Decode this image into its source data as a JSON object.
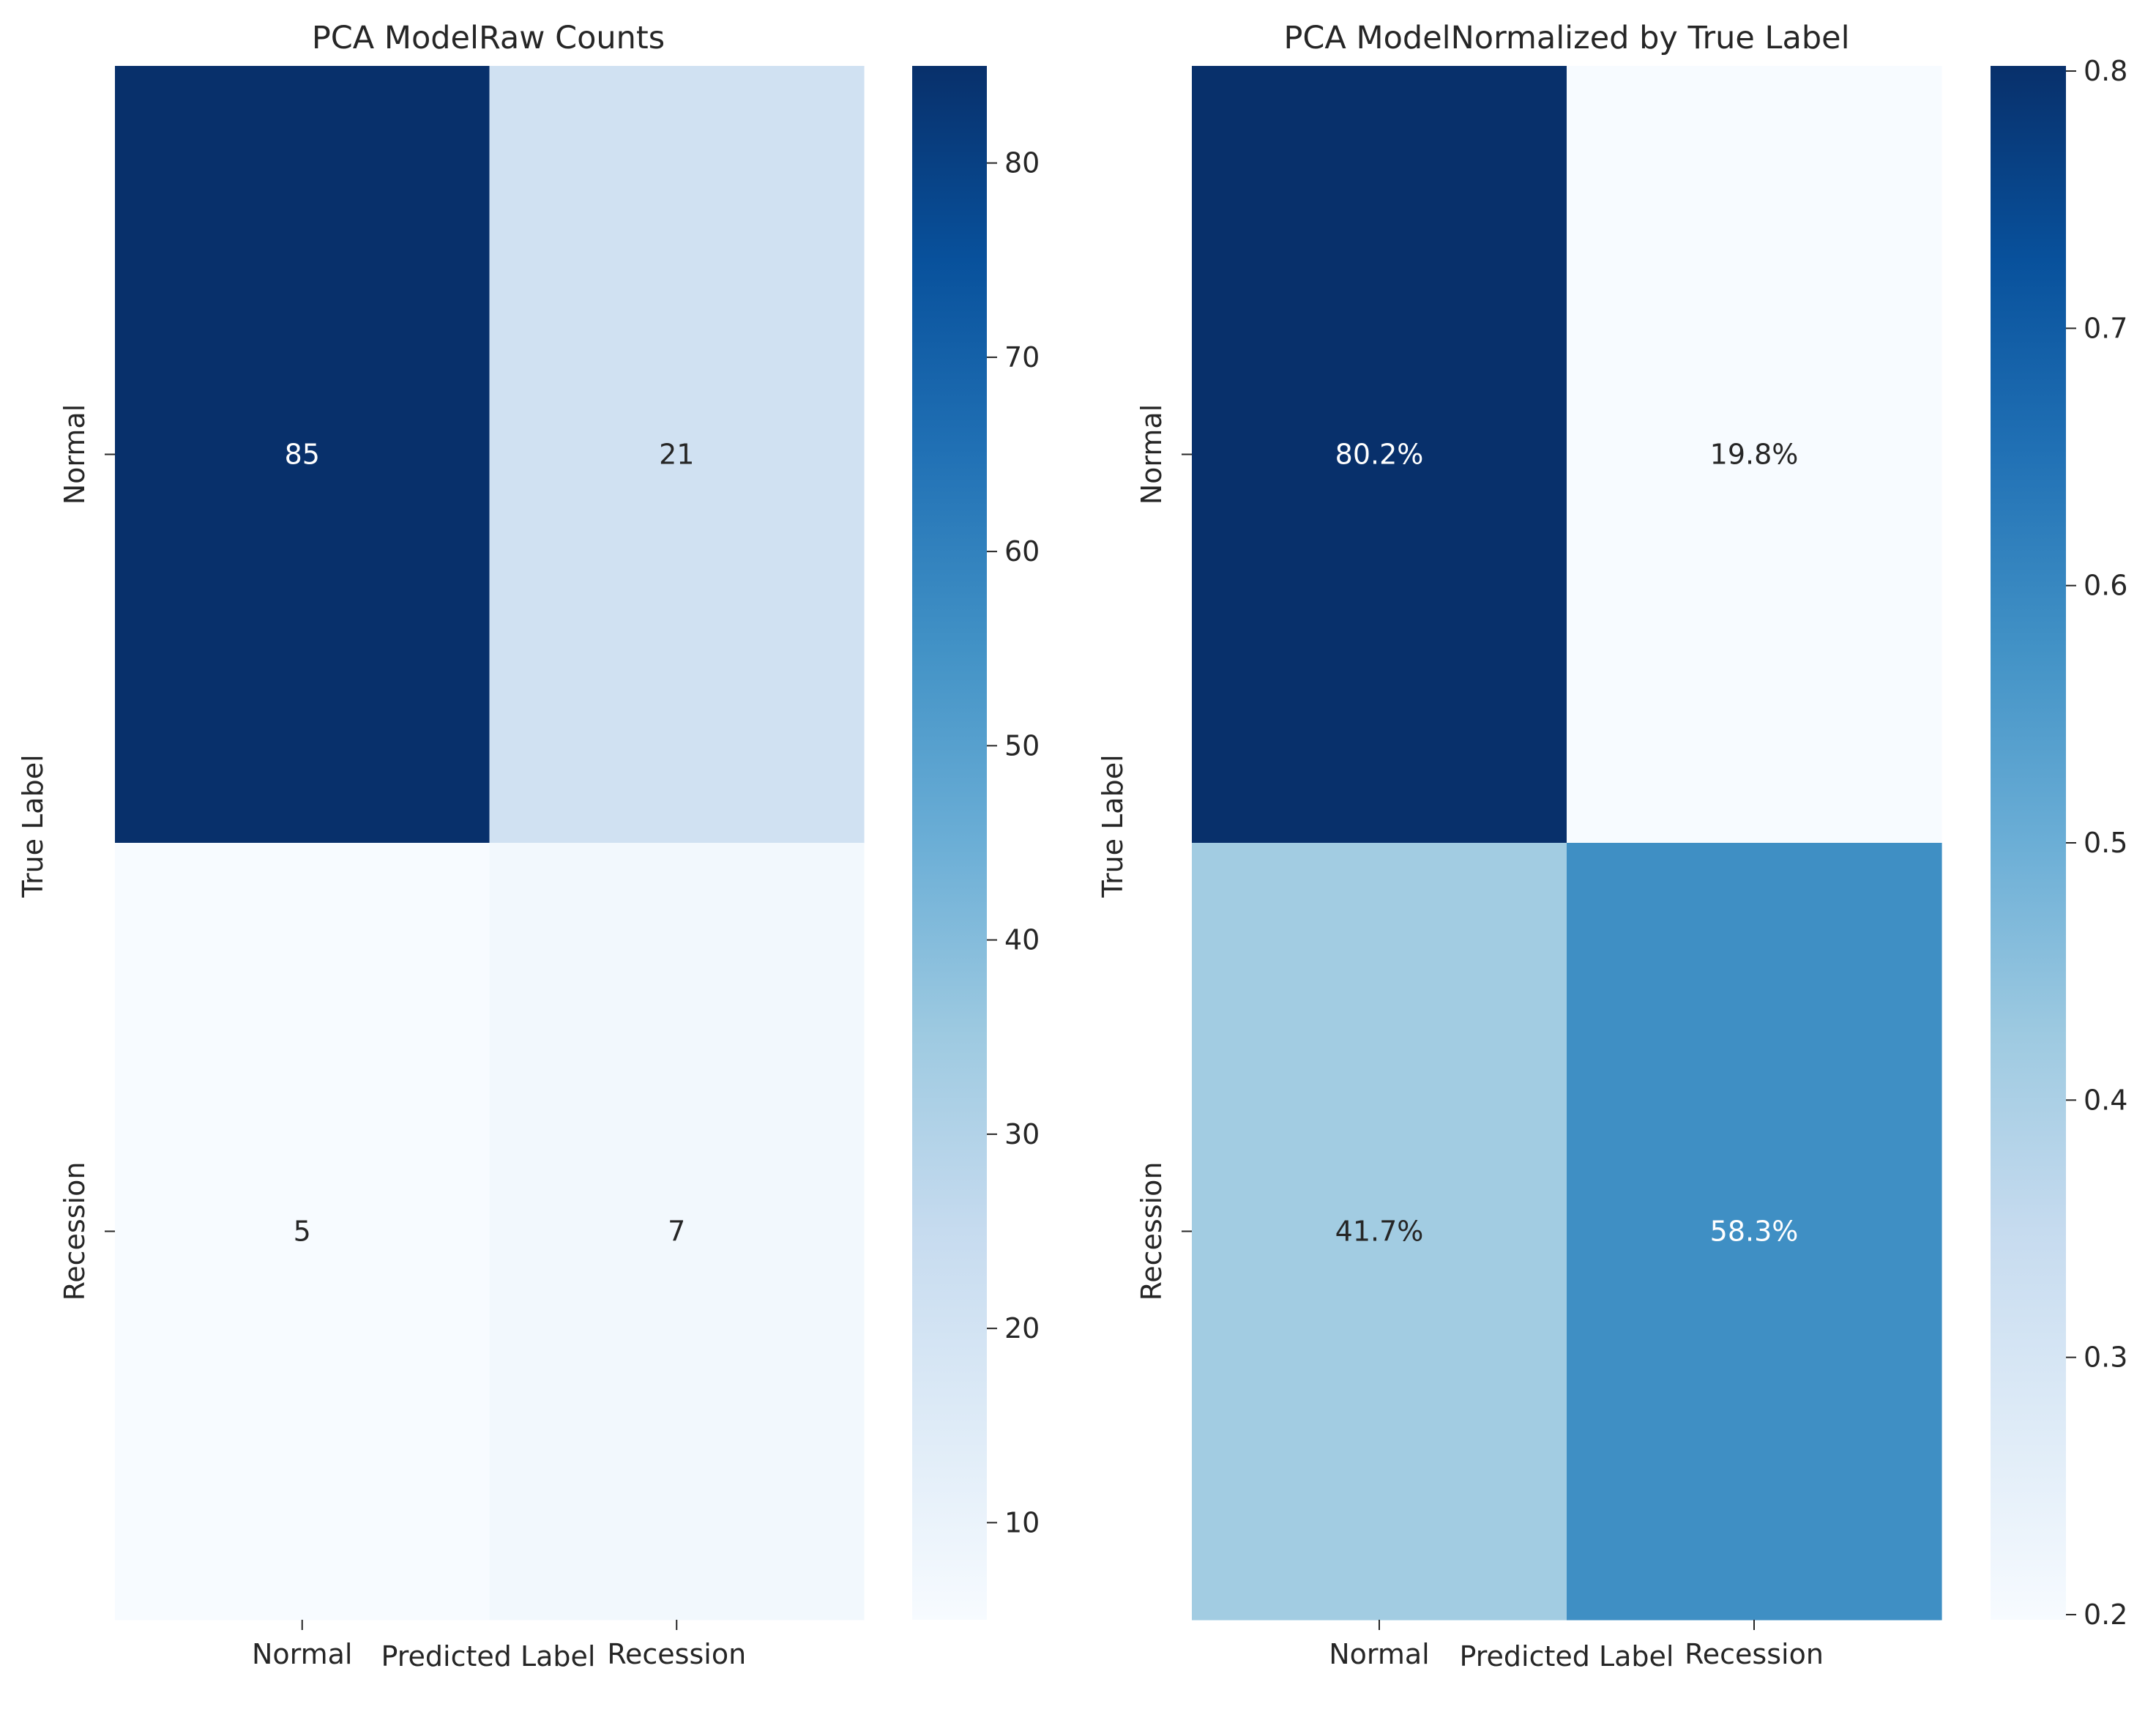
{
  "chart_data": [
    {
      "type": "heatmap",
      "title": "PCA ModelRaw Counts",
      "xlabel": "Predicted Label",
      "ylabel": "True Label",
      "x_categories": [
        "Normal",
        "Recession"
      ],
      "y_categories": [
        "Normal",
        "Recession"
      ],
      "values": [
        [
          85,
          21
        ],
        [
          5,
          7
        ]
      ],
      "annotations": [
        [
          "85",
          "21"
        ],
        [
          "5",
          "7"
        ]
      ],
      "colormap": "Blues",
      "vmin": 5,
      "vmax": 85,
      "colorbar_ticks": [
        10,
        20,
        30,
        40,
        50,
        60,
        70,
        80
      ],
      "colorbar_tick_labels": [
        "10",
        "20",
        "30",
        "40",
        "50",
        "60",
        "70",
        "80"
      ]
    },
    {
      "type": "heatmap",
      "title": "PCA ModelNormalized by True Label",
      "xlabel": "Predicted Label",
      "ylabel": "True Label",
      "x_categories": [
        "Normal",
        "Recession"
      ],
      "y_categories": [
        "Normal",
        "Recession"
      ],
      "values": [
        [
          0.802,
          0.198
        ],
        [
          0.417,
          0.583
        ]
      ],
      "annotations": [
        [
          "80.2%",
          "19.8%"
        ],
        [
          "41.7%",
          "58.3%"
        ]
      ],
      "colormap": "Blues",
      "vmin": 0.198,
      "vmax": 0.802,
      "colorbar_ticks": [
        0.2,
        0.3,
        0.4,
        0.5,
        0.6,
        0.7,
        0.8
      ],
      "colorbar_tick_labels": [
        "0.2",
        "0.3",
        "0.4",
        "0.5",
        "0.6",
        "0.7",
        "0.8"
      ]
    }
  ]
}
